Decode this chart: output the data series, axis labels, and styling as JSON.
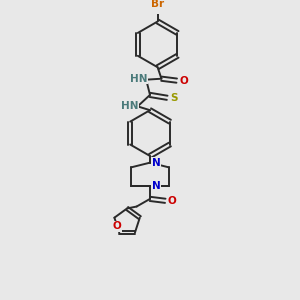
{
  "background_color": "#e8e8e8",
  "bond_color": "#2a2a2a",
  "atom_colors": {
    "Br": "#cc6600",
    "N": "#0000cc",
    "O": "#cc0000",
    "S": "#999900",
    "C": "#2a2a2a",
    "H": "#4a7a7a"
  },
  "figsize": [
    3.0,
    3.0
  ],
  "dpi": 100
}
